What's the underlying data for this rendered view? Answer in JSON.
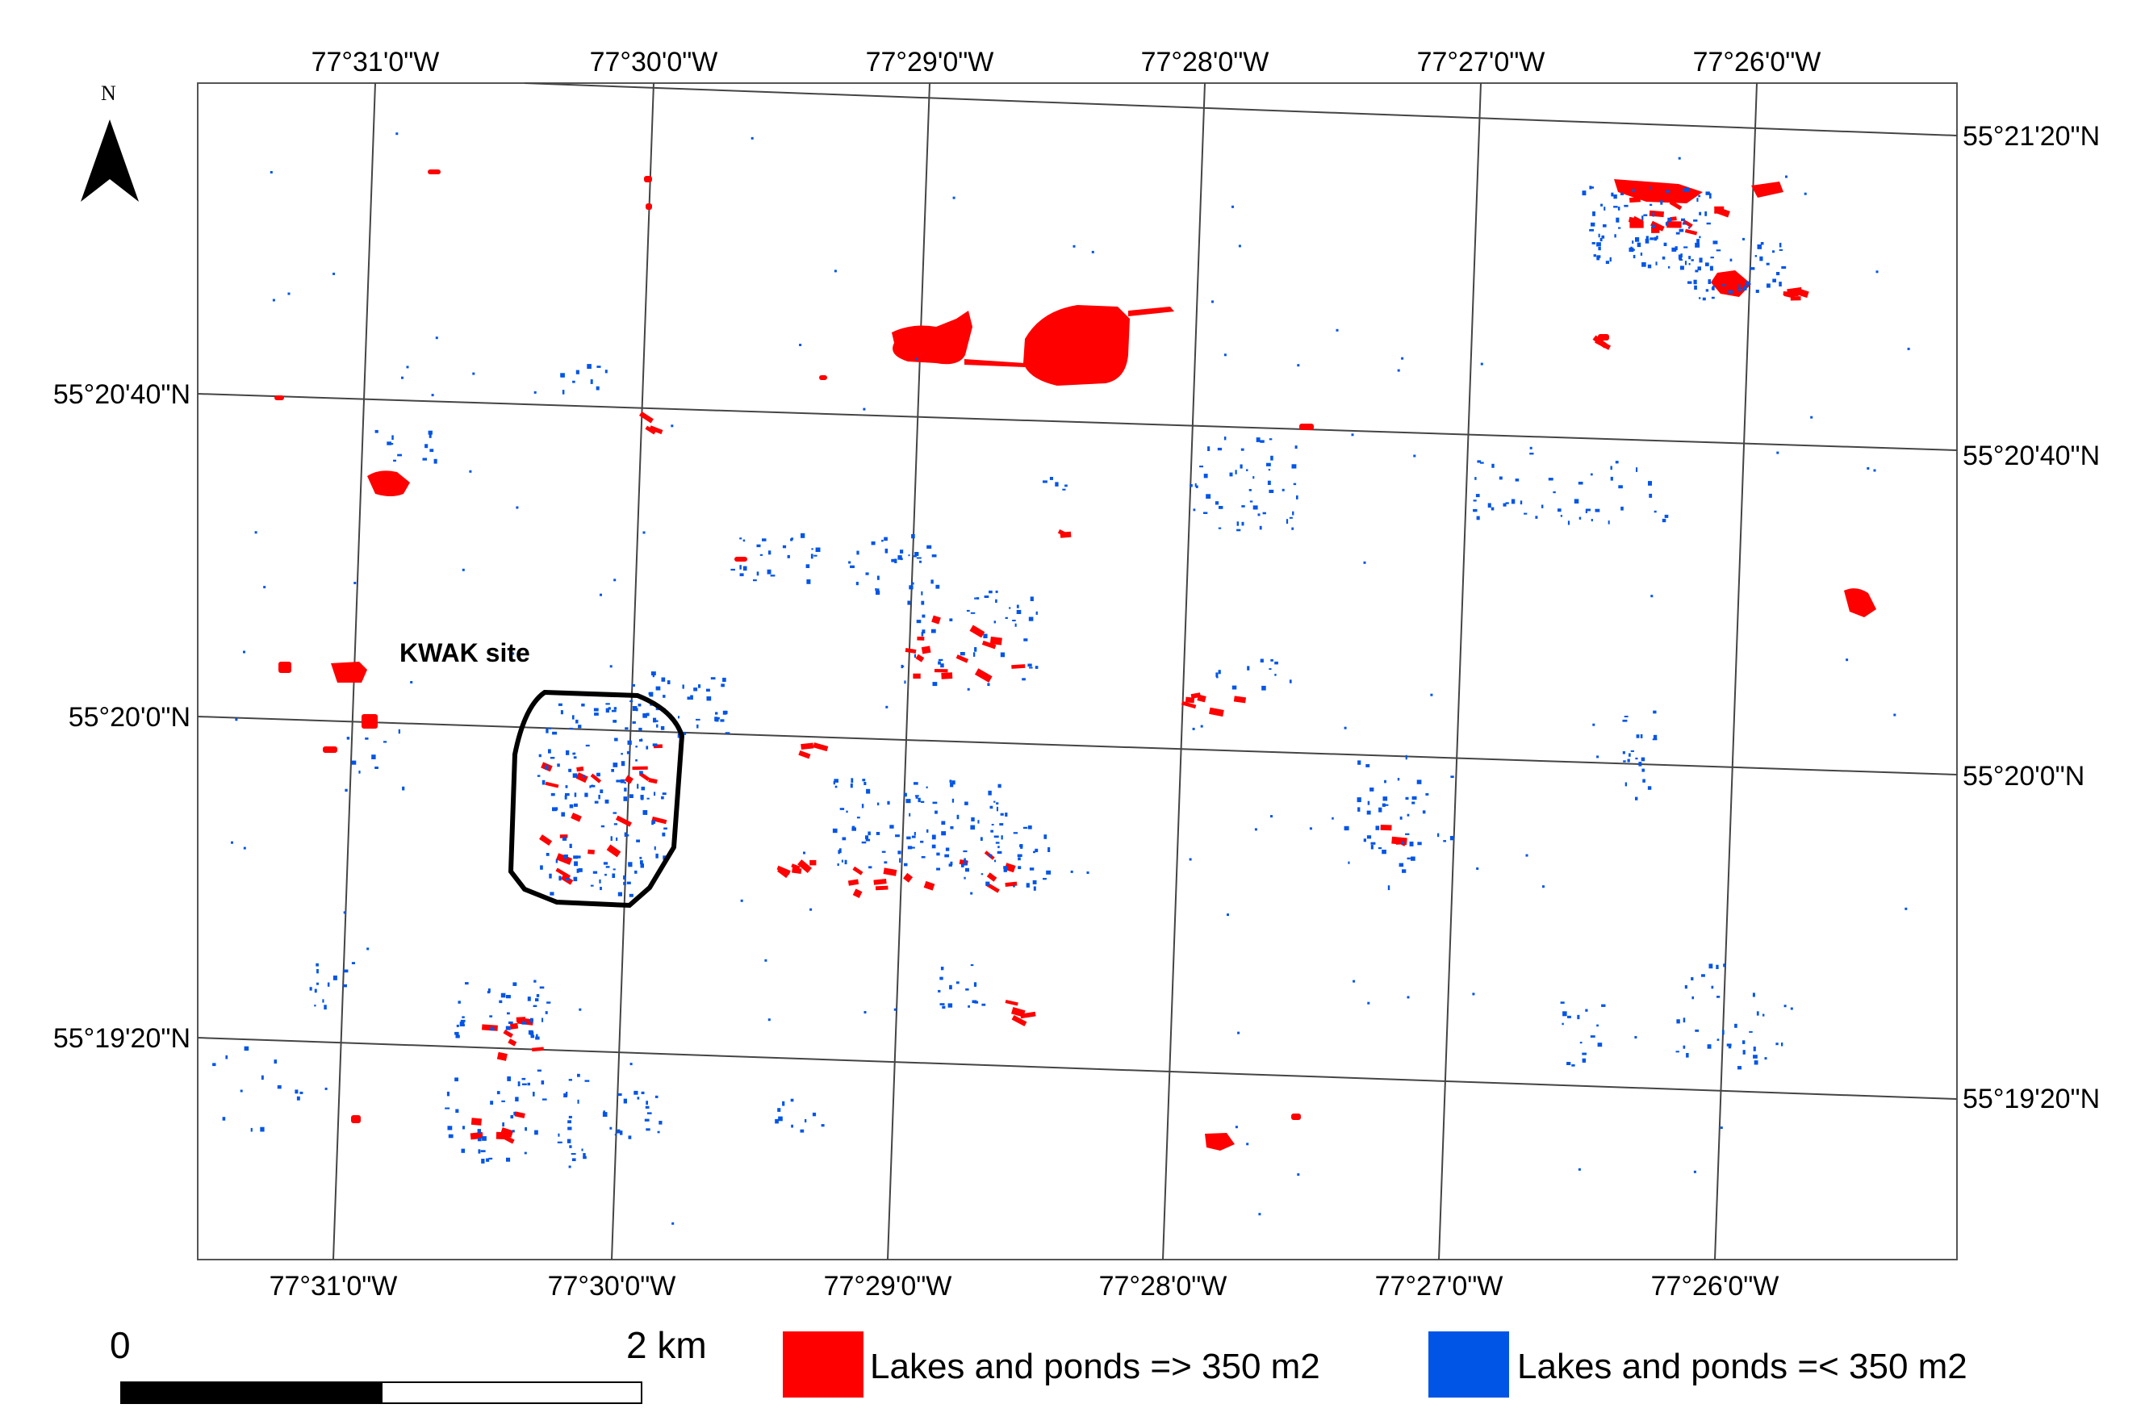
{
  "north_arrow": {
    "letter": "N",
    "icon": "north-arrow-icon"
  },
  "graticule": {
    "top_labels": [
      "77°31'0\"W",
      "77°30'0\"W",
      "77°29'0\"W",
      "77°28'0\"W",
      "77°27'0\"W",
      "77°26'0\"W"
    ],
    "bottom_labels": [
      "77°31'0\"W",
      "77°30'0\"W",
      "77°29'0\"W",
      "77°28'0\"W",
      "77°27'0\"W",
      "77°26'0\"W"
    ],
    "left_labels": [
      "55°20'40\"N",
      "55°20'0\"N",
      "55°19'20\"N"
    ],
    "right_labels": [
      "55°21'20\"N",
      "55°20'40\"N",
      "55°20'0\"N",
      "55°19'20\"N"
    ]
  },
  "site": {
    "label": "KWAK site",
    "outline_color": "#000000"
  },
  "scale_bar": {
    "start_label": "0",
    "end_label": "2 km"
  },
  "legend": {
    "items": [
      {
        "label": "Lakes and ponds => 350 m2",
        "color": "#ff0000"
      },
      {
        "label": "Lakes and ponds =< 350 m2",
        "color": "#0055e6"
      }
    ]
  },
  "colors": {
    "large_water": "#ff0000",
    "small_water": "#0055e6",
    "grid": "#444444",
    "frame": "#555555"
  }
}
